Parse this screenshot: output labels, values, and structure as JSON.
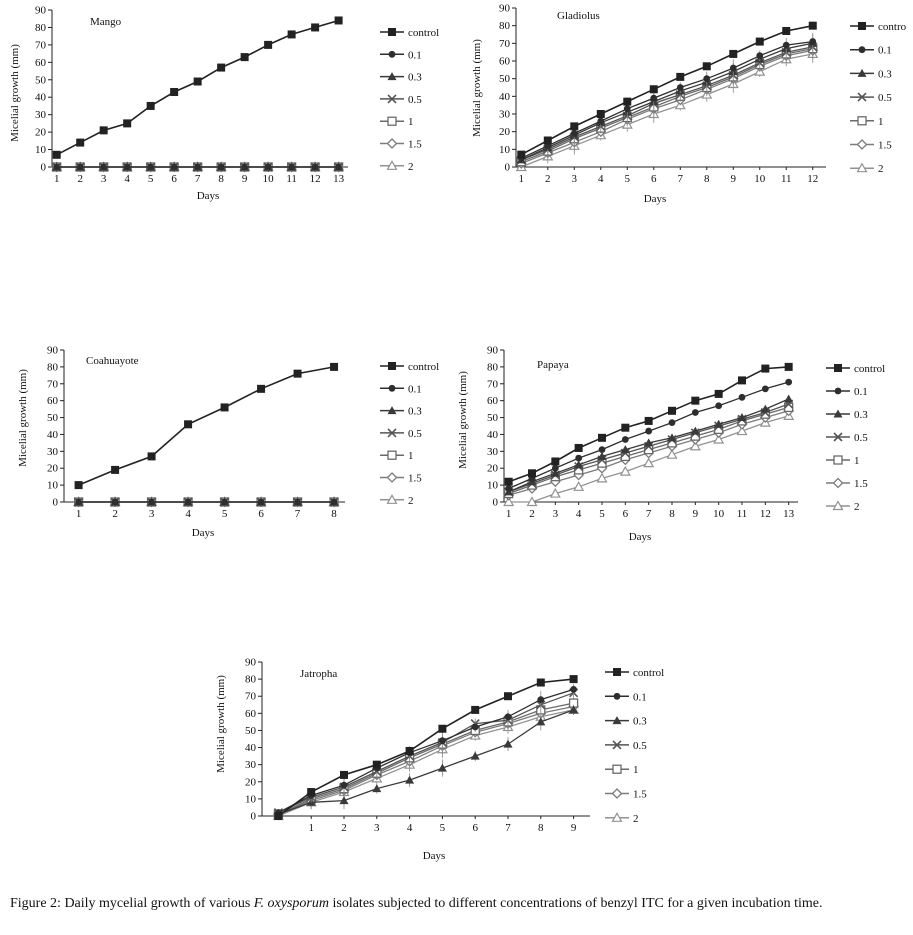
{
  "legend_labels": [
    "control",
    "0.1",
    "0.3",
    "0.5",
    "1",
    "1.5",
    "2"
  ],
  "figure_caption": {
    "prefix": "Figure 2: Daily mycelial growth of various ",
    "species": "F.  oxysporum",
    "suffix": " isolates subjected to different concentrations of benzyl ITC for a given incubation time."
  },
  "chart_data": [
    {
      "type": "line",
      "title": "Mango",
      "xlabel": "Days",
      "ylabel": "Micelial growth (mm)",
      "ylim": [
        0,
        90
      ],
      "yticks": [
        0,
        10,
        20,
        30,
        40,
        50,
        60,
        70,
        80,
        90
      ],
      "x": [
        1,
        2,
        3,
        4,
        5,
        6,
        7,
        8,
        9,
        10,
        11,
        12,
        13
      ],
      "xticklabels": [
        "1",
        "2",
        "3",
        "4",
        "5",
        "6",
        "7",
        "8",
        "9",
        "10",
        "11",
        "12",
        "13"
      ],
      "xaxis_start": 0.8,
      "xaxis_end": 13.4,
      "series": [
        {
          "name": "control",
          "values": [
            7,
            14,
            21,
            25,
            35,
            43,
            49,
            57,
            63,
            70,
            76,
            80,
            84
          ]
        },
        {
          "name": "0.1",
          "values": [
            0,
            0,
            0,
            0,
            0,
            0,
            0,
            0,
            0,
            0,
            0,
            0,
            0
          ]
        },
        {
          "name": "0.3",
          "values": [
            0,
            0,
            0,
            0,
            0,
            0,
            0,
            0,
            0,
            0,
            0,
            0,
            0
          ]
        },
        {
          "name": "0.5",
          "values": [
            0,
            0,
            0,
            0,
            0,
            0,
            0,
            0,
            0,
            0,
            0,
            0,
            0
          ]
        },
        {
          "name": "1",
          "values": [
            0,
            0,
            0,
            0,
            0,
            0,
            0,
            0,
            0,
            0,
            0,
            0,
            0
          ]
        },
        {
          "name": "1.5",
          "values": [
            0,
            0,
            0,
            0,
            0,
            0,
            0,
            0,
            0,
            0,
            0,
            0,
            0
          ]
        },
        {
          "name": "2",
          "values": [
            0,
            0,
            0,
            0,
            0,
            0,
            0,
            0,
            0,
            0,
            0,
            0,
            0
          ]
        }
      ],
      "legend_first_label": "control"
    },
    {
      "type": "line",
      "title": "Gladiolus",
      "xlabel": "Days",
      "ylabel": "Micelial growth (mm)",
      "ylim": [
        0,
        90
      ],
      "yticks": [
        0,
        10,
        20,
        30,
        40,
        50,
        60,
        70,
        80,
        90
      ],
      "x": [
        1,
        2,
        3,
        4,
        5,
        6,
        7,
        8,
        9,
        10,
        11,
        12
      ],
      "xticklabels": [
        "1",
        "2",
        "3",
        "4",
        "5",
        "6",
        "7",
        "8",
        "9",
        "10",
        "11",
        "12"
      ],
      "xaxis_start": 0.8,
      "xaxis_end": 12.5,
      "series": [
        {
          "name": "control",
          "values": [
            7,
            15,
            23,
            30,
            37,
            44,
            51,
            57,
            64,
            71,
            77,
            80
          ]
        },
        {
          "name": "0.1",
          "values": [
            5,
            12,
            19,
            26,
            33,
            39,
            45,
            50,
            56,
            63,
            69,
            71
          ]
        },
        {
          "name": "0.3",
          "values": [
            4,
            11,
            18,
            25,
            31,
            37,
            43,
            48,
            54,
            61,
            67,
            70
          ]
        },
        {
          "name": "0.5",
          "values": [
            4,
            10,
            17,
            23,
            29,
            36,
            41,
            46,
            52,
            59,
            65,
            68
          ]
        },
        {
          "name": "1",
          "values": [
            3,
            9,
            16,
            22,
            28,
            34,
            40,
            45,
            51,
            58,
            64,
            67
          ]
        },
        {
          "name": "1.5",
          "values": [
            2,
            8,
            14,
            20,
            27,
            33,
            38,
            44,
            50,
            57,
            63,
            66
          ]
        },
        {
          "name": "2",
          "values": [
            0,
            6,
            12,
            18,
            24,
            30,
            35,
            41,
            47,
            54,
            61,
            64
          ]
        }
      ],
      "errorbars": true,
      "legend_first_label": "contro"
    },
    {
      "type": "line",
      "title": "Coahuayote",
      "xlabel": "Days",
      "ylabel": "Micelial growth (mm)",
      "ylim": [
        0,
        90
      ],
      "yticks": [
        0,
        10,
        20,
        30,
        40,
        50,
        60,
        70,
        80,
        90
      ],
      "x": [
        1,
        2,
        3,
        4,
        5,
        6,
        7,
        8
      ],
      "xticklabels": [
        "1",
        "2",
        "3",
        "4",
        "5",
        "6",
        "7",
        "8"
      ],
      "xaxis_start": 0.6,
      "xaxis_end": 8.3,
      "series": [
        {
          "name": "control",
          "values": [
            10,
            19,
            27,
            46,
            56,
            67,
            76,
            80
          ]
        },
        {
          "name": "0.1",
          "values": [
            0,
            0,
            0,
            0,
            0,
            0,
            0,
            0
          ]
        },
        {
          "name": "0.3",
          "values": [
            0,
            0,
            0,
            0,
            0,
            0,
            0,
            0
          ]
        },
        {
          "name": "0.5",
          "values": [
            0,
            0,
            0,
            0,
            0,
            0,
            0,
            0
          ]
        },
        {
          "name": "1",
          "values": [
            0,
            0,
            0,
            0,
            0,
            0,
            0,
            0
          ]
        },
        {
          "name": "1.5",
          "values": [
            0,
            0,
            0,
            0,
            0,
            0,
            0,
            0
          ]
        },
        {
          "name": "2",
          "values": [
            0,
            0,
            0,
            0,
            0,
            0,
            0,
            0
          ]
        }
      ],
      "legend_first_label": "control"
    },
    {
      "type": "line",
      "title": "Papaya",
      "xlabel": "Days",
      "ylabel": "Micelial growth (mm)",
      "ylim": [
        0,
        90
      ],
      "yticks": [
        0,
        10,
        20,
        30,
        40,
        50,
        60,
        70,
        80,
        90
      ],
      "x": [
        1,
        2,
        3,
        4,
        5,
        6,
        7,
        8,
        9,
        10,
        11,
        12,
        13
      ],
      "xticklabels": [
        "1",
        "2",
        "3",
        "4",
        "5",
        "6",
        "7",
        "8",
        "9",
        "10",
        "11",
        "12",
        "13"
      ],
      "xaxis_start": 0.8,
      "xaxis_end": 13.4,
      "series": [
        {
          "name": "control",
          "values": [
            12,
            17,
            24,
            32,
            38,
            44,
            48,
            54,
            60,
            64,
            72,
            79,
            80
          ]
        },
        {
          "name": "0.1",
          "values": [
            8,
            14,
            20,
            26,
            31,
            37,
            42,
            47,
            53,
            57,
            62,
            67,
            71
          ]
        },
        {
          "name": "0.3",
          "values": [
            6,
            12,
            17,
            22,
            27,
            31,
            35,
            38,
            42,
            46,
            50,
            55,
            61
          ]
        },
        {
          "name": "0.5",
          "values": [
            6,
            11,
            16,
            21,
            25,
            29,
            33,
            37,
            41,
            45,
            49,
            53,
            58
          ]
        },
        {
          "name": "1",
          "values": [
            5,
            10,
            15,
            19,
            23,
            27,
            31,
            35,
            39,
            43,
            48,
            52,
            56
          ]
        },
        {
          "name": "1.5",
          "values": [
            4,
            8,
            12,
            16,
            20,
            25,
            29,
            33,
            37,
            41,
            46,
            50,
            54
          ]
        },
        {
          "name": "2",
          "values": [
            0,
            0,
            5,
            9,
            14,
            18,
            23,
            28,
            33,
            37,
            42,
            47,
            51
          ]
        }
      ],
      "legend_first_label": "control"
    },
    {
      "type": "line",
      "title": "Jatropha",
      "xlabel": "Days",
      "ylabel": "Micelial growth (mm)",
      "ylim": [
        0,
        90
      ],
      "yticks": [
        0,
        10,
        20,
        30,
        40,
        50,
        60,
        70,
        80,
        90
      ],
      "x": [
        0,
        1,
        2,
        3,
        4,
        5,
        6,
        7,
        8,
        9
      ],
      "xticklabels": [
        "",
        "1",
        "2",
        "3",
        "4",
        "5",
        "6",
        "7",
        "8",
        "9"
      ],
      "xaxis_start": -0.5,
      "xaxis_end": 9.5,
      "series": [
        {
          "name": "control",
          "values": [
            0,
            14,
            24,
            30,
            38,
            51,
            62,
            70,
            78,
            80
          ]
        },
        {
          "name": "0.1",
          "values": [
            2,
            12,
            18,
            28,
            37,
            44,
            52,
            58,
            68,
            74
          ]
        },
        {
          "name": "0.3",
          "values": [
            1,
            8,
            9,
            16,
            21,
            28,
            35,
            42,
            55,
            62
          ]
        },
        {
          "name": "0.5",
          "values": [
            2,
            11,
            17,
            26,
            35,
            43,
            54,
            56,
            65,
            72
          ]
        },
        {
          "name": "1",
          "values": [
            1,
            10,
            16,
            25,
            34,
            42,
            50,
            55,
            62,
            66
          ]
        },
        {
          "name": "1.5",
          "values": [
            1,
            9,
            15,
            24,
            32,
            41,
            49,
            54,
            60,
            64
          ]
        },
        {
          "name": "2",
          "values": [
            0,
            8,
            14,
            22,
            30,
            39,
            47,
            52,
            58,
            62
          ]
        }
      ],
      "errorbars": true,
      "legend_first_label": "control"
    }
  ]
}
